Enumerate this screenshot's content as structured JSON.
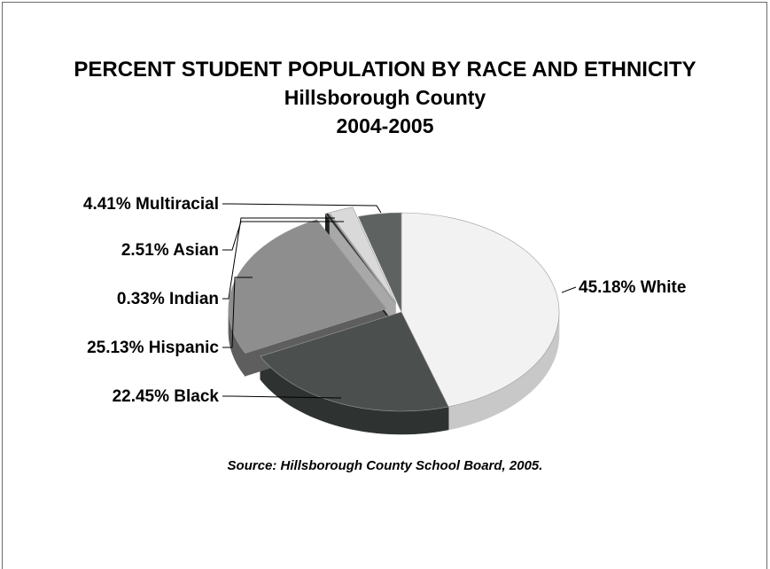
{
  "chart_data": {
    "type": "pie",
    "title": "PERCENT STUDENT POPULATION BY RACE AND ETHNICITY",
    "subtitle": "Hillsborough County",
    "period": "2004-2005",
    "slices": [
      {
        "label": "White",
        "value": 45.18,
        "display": "45.18%",
        "color": "#f2f2f2",
        "side": "#c8c8c8"
      },
      {
        "label": "Black",
        "value": 22.45,
        "display": "22.45%",
        "color": "#4b504e",
        "side": "#2e3331"
      },
      {
        "label": "Hispanic",
        "value": 25.13,
        "display": "25.13%",
        "color": "#8e8e8e",
        "side": "#5e5e5e"
      },
      {
        "label": "Indian",
        "value": 0.33,
        "display": "0.33%",
        "color": "#2f3533",
        "side": "#1e2322"
      },
      {
        "label": "Asian",
        "value": 2.51,
        "display": "2.51%",
        "color": "#d9d9d9",
        "side": "#a8a8a8"
      },
      {
        "label": "Multiracial",
        "value": 4.41,
        "display": "4.41%",
        "color": "#5e6361",
        "side": "#3c4140"
      }
    ],
    "exploded": [
      "Hispanic",
      "Indian",
      "Asian"
    ],
    "legend": "none",
    "label_style": "outside-with-leader-lines"
  },
  "source": "Source:  Hillsborough County School Board, 2005.",
  "colors": {
    "background": "#ffffff",
    "frame": "#6b6b6b",
    "leader_line": "#000000"
  }
}
